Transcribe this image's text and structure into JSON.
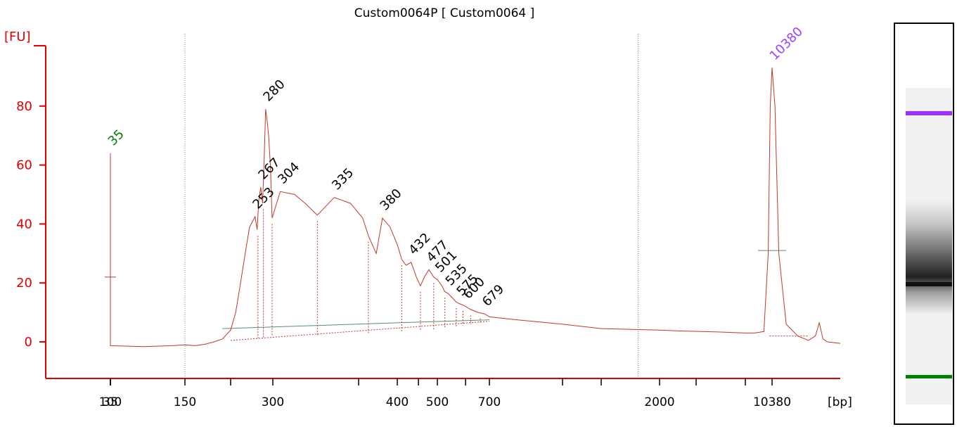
{
  "chart_data": {
    "type": "line",
    "title": "Custom0064P  [ Custom0064 ]",
    "ylabel": "[FU]",
    "xlabel": "[bp]",
    "y_ticks": [
      0,
      20,
      40,
      60,
      80
    ],
    "ylim": [
      -13,
      104
    ],
    "x_ticks": [
      {
        "label": "35",
        "t": 35
      },
      {
        "label": "100",
        "t": 100
      },
      {
        "label": "150",
        "t": 150
      },
      {
        "label": "300",
        "t": 300
      },
      {
        "label": "400",
        "t": 400
      },
      {
        "label": "500",
        "t": 500
      },
      {
        "label": "700",
        "t": 700
      },
      {
        "label": "2000",
        "t": 2000
      },
      {
        "label": "10380",
        "t": 10380
      }
    ],
    "minor_x_ticks": [
      65,
      200,
      350,
      450,
      600,
      1000,
      1500,
      4000,
      7000
    ],
    "x_knots": [
      [
        35,
        35
      ],
      [
        100,
        100
      ],
      [
        150,
        150
      ],
      [
        200,
        200
      ],
      [
        300,
        300
      ],
      [
        350,
        350
      ],
      [
        400,
        400
      ],
      [
        500,
        500
      ],
      [
        700,
        700
      ],
      [
        1000,
        1000
      ],
      [
        1500,
        1500
      ],
      [
        2000,
        2000
      ],
      [
        4000,
        4000
      ],
      [
        7000,
        7000
      ],
      [
        10380,
        10380
      ],
      [
        17000,
        17000
      ]
    ],
    "trace": [
      [
        20,
        -0.3
      ],
      [
        28,
        -0.2
      ],
      [
        32,
        -0.4
      ],
      [
        33.5,
        0.5
      ],
      [
        34.2,
        20
      ],
      [
        34.7,
        50
      ],
      [
        35,
        64
      ],
      [
        35.3,
        50
      ],
      [
        35.8,
        20
      ],
      [
        36.5,
        0.5
      ],
      [
        38,
        -0.6
      ],
      [
        45,
        -0.8
      ],
      [
        60,
        -1.0
      ],
      [
        80,
        -1.4
      ],
      [
        100,
        -1.3
      ],
      [
        120,
        -1.6
      ],
      [
        140,
        -1.3
      ],
      [
        150,
        -1.0
      ],
      [
        160,
        -1.3
      ],
      [
        170,
        -0.8
      ],
      [
        180,
        0
      ],
      [
        190,
        1
      ],
      [
        200,
        4
      ],
      [
        210,
        10
      ],
      [
        220,
        20
      ],
      [
        230,
        30
      ],
      [
        240,
        39
      ],
      [
        253,
        42.5
      ],
      [
        258,
        38
      ],
      [
        262,
        48
      ],
      [
        267,
        52.5
      ],
      [
        272,
        47
      ],
      [
        276,
        62
      ],
      [
        280,
        79
      ],
      [
        284,
        75
      ],
      [
        288,
        70
      ],
      [
        293,
        60
      ],
      [
        298,
        42
      ],
      [
        304,
        51
      ],
      [
        312,
        50
      ],
      [
        318,
        47
      ],
      [
        325,
        43
      ],
      [
        335,
        49
      ],
      [
        345,
        47
      ],
      [
        355,
        42
      ],
      [
        362,
        36
      ],
      [
        372,
        30
      ],
      [
        380,
        42
      ],
      [
        390,
        39
      ],
      [
        400,
        33
      ],
      [
        410,
        28
      ],
      [
        420,
        26
      ],
      [
        432,
        27
      ],
      [
        445,
        22
      ],
      [
        455,
        19
      ],
      [
        465,
        22
      ],
      [
        477,
        24.5
      ],
      [
        490,
        22
      ],
      [
        501,
        21
      ],
      [
        515,
        19
      ],
      [
        525,
        17
      ],
      [
        535,
        16.5
      ],
      [
        550,
        15
      ],
      [
        565,
        13.5
      ],
      [
        575,
        13
      ],
      [
        590,
        12.5
      ],
      [
        600,
        12
      ],
      [
        620,
        11
      ],
      [
        650,
        10
      ],
      [
        679,
        9.5
      ],
      [
        700,
        8.5
      ],
      [
        800,
        7.5
      ],
      [
        900,
        6.7
      ],
      [
        1000,
        6
      ],
      [
        1500,
        4.5
      ],
      [
        2000,
        4
      ],
      [
        3000,
        3.7
      ],
      [
        5000,
        3.4
      ],
      [
        7000,
        3
      ],
      [
        8000,
        3
      ],
      [
        9200,
        3.5
      ],
      [
        9800,
        30
      ],
      [
        10100,
        80
      ],
      [
        10380,
        93
      ],
      [
        10600,
        80
      ],
      [
        10900,
        30
      ],
      [
        11500,
        6
      ],
      [
        12500,
        2
      ],
      [
        13500,
        0.5
      ],
      [
        14200,
        2
      ],
      [
        14600,
        6.5
      ],
      [
        15000,
        1
      ],
      [
        15500,
        0
      ],
      [
        17000,
        -0.5
      ]
    ],
    "peaks": [
      {
        "label": "35",
        "x": 35,
        "y": 64,
        "color": "#008000"
      },
      {
        "label": "253",
        "x": 253,
        "y": 42.5,
        "color": "#000000"
      },
      {
        "label": "267",
        "x": 267,
        "y": 52.5,
        "color": "#000000"
      },
      {
        "label": "280",
        "x": 280,
        "y": 79,
        "color": "#000000"
      },
      {
        "label": "304",
        "x": 304,
        "y": 51,
        "color": "#000000"
      },
      {
        "label": "335",
        "x": 335,
        "y": 49,
        "color": "#000000"
      },
      {
        "label": "380",
        "x": 380,
        "y": 42,
        "color": "#000000"
      },
      {
        "label": "432",
        "x": 432,
        "y": 27,
        "color": "#000000"
      },
      {
        "label": "477",
        "x": 477,
        "y": 24.5,
        "color": "#000000"
      },
      {
        "label": "501",
        "x": 501,
        "y": 21,
        "color": "#000000"
      },
      {
        "label": "535",
        "x": 535,
        "y": 16.5,
        "color": "#000000"
      },
      {
        "label": "575",
        "x": 575,
        "y": 13,
        "color": "#000000"
      },
      {
        "label": "600",
        "x": 600,
        "y": 12,
        "color": "#000000"
      },
      {
        "label": "679",
        "x": 679,
        "y": 9.5,
        "color": "#000000"
      },
      {
        "label": "10380",
        "x": 10380,
        "y": 93,
        "color": "#a040ff"
      }
    ],
    "region_markers": [
      150,
      1800
    ],
    "colors": {
      "axis": "#e00000",
      "trace": "#c0392b",
      "baseline": "#5e8a7a",
      "gridline": "#888888"
    }
  },
  "gel": {
    "upper_marker_color": "#9b30ff",
    "lower_marker_color": "#008000"
  }
}
